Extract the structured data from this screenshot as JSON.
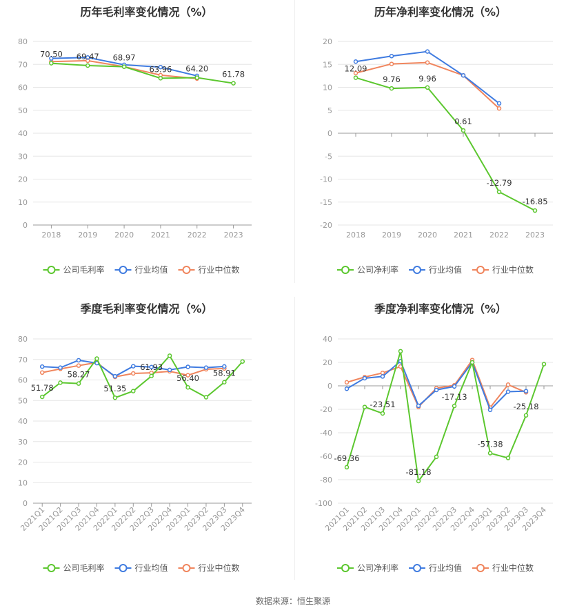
{
  "source": "数据来源：恒生聚源",
  "colors": {
    "company": "#5cc72f",
    "avg": "#3f7be0",
    "median": "#f0855d"
  },
  "chart_data": [
    {
      "type": "line",
      "title": "历年毛利率变化情况（%）",
      "categories": [
        "2018",
        "2019",
        "2020",
        "2021",
        "2022",
        "2023"
      ],
      "ylim": [
        0,
        80
      ],
      "yticks": [
        0,
        10,
        20,
        30,
        40,
        50,
        60,
        70,
        80
      ],
      "grid": true,
      "legend": "bottom",
      "rotate_xlabels": false,
      "series": [
        {
          "name": "公司毛利率",
          "key": "company",
          "values": [
            70.5,
            69.47,
            68.97,
            63.96,
            64.2,
            61.78
          ],
          "labels": [
            "70.50",
            "69.47",
            "68.97",
            "63.96",
            "64.20",
            "61.78"
          ]
        },
        {
          "name": "行业均值",
          "key": "avg",
          "values": [
            72.6,
            73.0,
            69.8,
            68.8,
            65.0,
            null
          ]
        },
        {
          "name": "行业中位数",
          "key": "median",
          "values": [
            71.2,
            71.6,
            69.0,
            65.3,
            63.8,
            null
          ]
        }
      ]
    },
    {
      "type": "line",
      "title": "历年净利率变化情况（%）",
      "categories": [
        "2018",
        "2019",
        "2020",
        "2021",
        "2022",
        "2023"
      ],
      "ylim": [
        -20,
        20
      ],
      "yticks": [
        -20,
        -15,
        -10,
        -5,
        0,
        5,
        10,
        15,
        20
      ],
      "grid": true,
      "legend": "bottom",
      "rotate_xlabels": false,
      "series": [
        {
          "name": "公司净利率",
          "key": "company",
          "values": [
            12.09,
            9.76,
            9.96,
            0.61,
            -12.79,
            -16.85
          ],
          "labels": [
            "12.09",
            "9.76",
            "9.96",
            "0.61",
            "-12.79",
            "-16.85"
          ]
        },
        {
          "name": "行业均值",
          "key": "avg",
          "values": [
            15.6,
            16.8,
            17.8,
            12.6,
            6.5,
            null
          ]
        },
        {
          "name": "行业中位数",
          "key": "median",
          "values": [
            13.1,
            15.1,
            15.4,
            12.6,
            5.4,
            null
          ]
        }
      ]
    },
    {
      "type": "line",
      "title": "季度毛利率变化情况（%）",
      "categories": [
        "2021Q1",
        "2021Q2",
        "2021Q3",
        "2021Q4",
        "2022Q1",
        "2022Q2",
        "2022Q3",
        "2022Q4",
        "2023Q1",
        "2023Q2",
        "2023Q3",
        "2023Q4"
      ],
      "ylim": [
        0,
        80
      ],
      "yticks": [
        0,
        10,
        20,
        30,
        40,
        50,
        60,
        70,
        80
      ],
      "grid": true,
      "legend": "bottom",
      "rotate_xlabels": true,
      "series": [
        {
          "name": "公司毛利率",
          "key": "company",
          "values": [
            51.78,
            58.7,
            58.27,
            70.4,
            51.35,
            54.6,
            61.93,
            71.8,
            56.4,
            51.6,
            58.91,
            69.0
          ],
          "labels": [
            "51.78",
            null,
            "58.27",
            null,
            "51.35",
            null,
            "61.93",
            null,
            "56.40",
            null,
            "58.91",
            null
          ]
        },
        {
          "name": "行业均值",
          "key": "avg",
          "values": [
            66.5,
            66.0,
            69.6,
            68.2,
            61.8,
            66.7,
            66.3,
            64.9,
            66.4,
            66.0,
            66.6,
            null
          ]
        },
        {
          "name": "行业中位数",
          "key": "median",
          "values": [
            63.6,
            65.4,
            67.0,
            68.5,
            61.5,
            63.2,
            63.5,
            64.2,
            62.3,
            65.2,
            65.6,
            null
          ]
        }
      ]
    },
    {
      "type": "line",
      "title": "季度净利率变化情况（%）",
      "categories": [
        "2021Q1",
        "2021Q2",
        "2021Q3",
        "2021Q4",
        "2022Q1",
        "2022Q2",
        "2022Q3",
        "2022Q4",
        "2023Q1",
        "2023Q2",
        "2023Q3",
        "2023Q4"
      ],
      "ylim": [
        -100,
        40
      ],
      "yticks": [
        -100,
        -80,
        -60,
        -40,
        -20,
        0,
        20,
        40
      ],
      "grid": true,
      "legend": "bottom",
      "rotate_xlabels": true,
      "series": [
        {
          "name": "公司净利率",
          "key": "company",
          "values": [
            -69.36,
            -18.0,
            -23.51,
            29.5,
            -81.18,
            -60.5,
            -17.13,
            20.0,
            -57.38,
            -61.5,
            -25.18,
            18.5
          ],
          "labels": [
            "-69.36",
            null,
            "-23.51",
            null,
            "-81.18",
            null,
            "-17.13",
            null,
            "-57.38",
            null,
            "-25.18",
            null
          ]
        },
        {
          "name": "行业均值",
          "key": "avg",
          "values": [
            -2.5,
            6.5,
            8.0,
            21.0,
            -17.0,
            -3.5,
            -0.5,
            20.0,
            -20.5,
            -5.0,
            -4.5,
            null
          ]
        },
        {
          "name": "行业中位数",
          "key": "median",
          "values": [
            3.0,
            7.5,
            11.0,
            16.5,
            -18.0,
            -2.0,
            0.5,
            22.0,
            -18.5,
            1.0,
            -5.5,
            null
          ]
        }
      ]
    }
  ]
}
